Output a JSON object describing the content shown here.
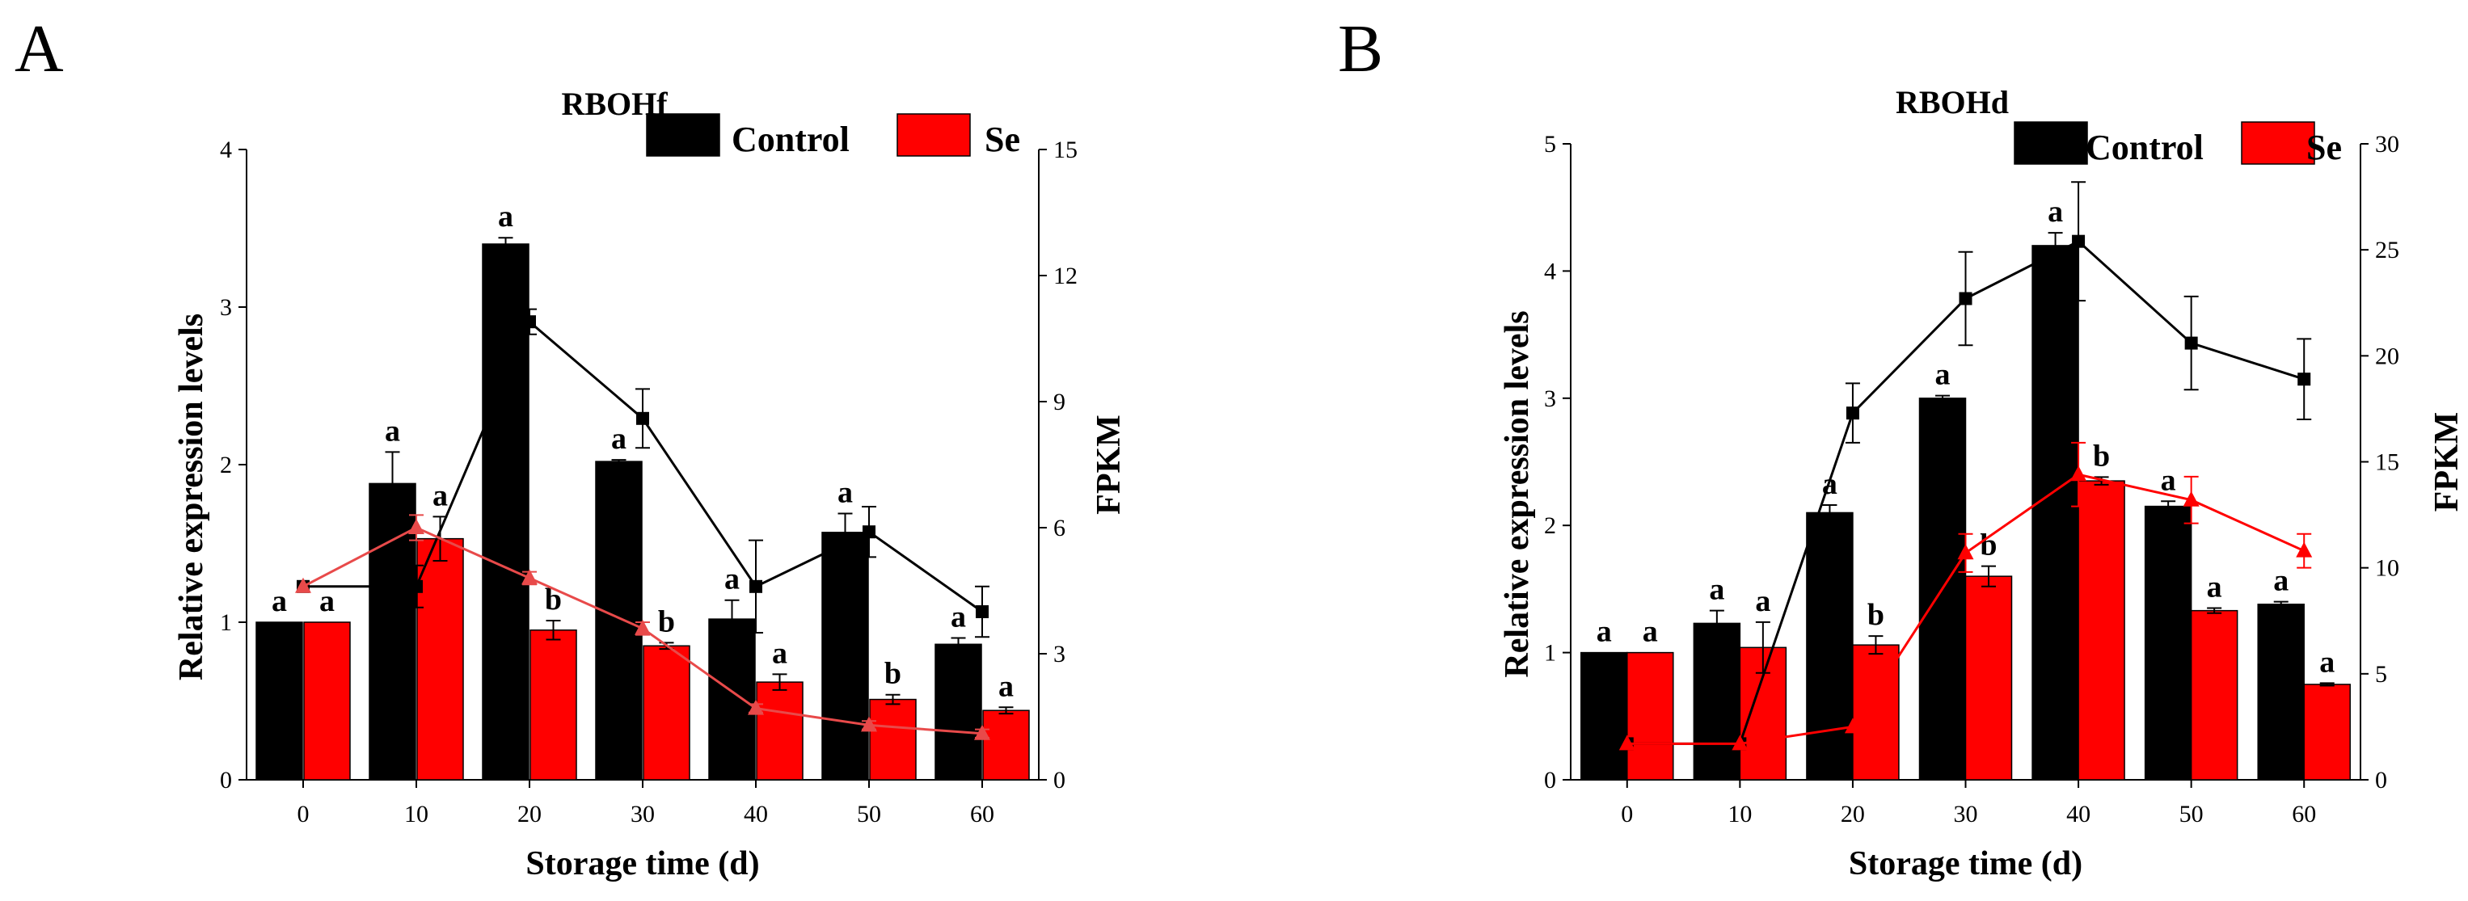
{
  "colors": {
    "control": "#000000",
    "se": "#ff0000",
    "se_line_A": "#e84a4a",
    "axis": "#000000"
  },
  "chart_data": [
    {
      "panel": "A",
      "type": "bar",
      "title": "RBOHf",
      "xlabel": "Storage time (d)",
      "ylabel": "Relative expression levels",
      "y2label": "FPKM",
      "categories": [
        "0",
        "10",
        "20",
        "30",
        "40",
        "50",
        "60"
      ],
      "ylim": [
        0,
        4
      ],
      "yticks": [
        0,
        1,
        2,
        3,
        4
      ],
      "y2lim": [
        0,
        15
      ],
      "y2ticks": [
        0,
        3,
        6,
        9,
        12,
        15
      ],
      "legend": [
        "Control",
        "Se"
      ],
      "legend_position": "top-right",
      "bars": [
        {
          "name": "Control",
          "values": [
            1.0,
            1.88,
            3.4,
            2.02,
            1.02,
            1.57,
            0.86
          ],
          "errors": [
            0,
            0.2,
            0.04,
            0.01,
            0.12,
            0.12,
            0.04
          ],
          "labels": [
            "a",
            "a",
            "a",
            "a",
            "a",
            "a",
            "a"
          ]
        },
        {
          "name": "Se",
          "values": [
            1.0,
            1.53,
            0.95,
            0.85,
            0.62,
            0.51,
            0.44
          ],
          "errors": [
            0,
            0.14,
            0.06,
            0.02,
            0.05,
            0.03,
            0.02
          ],
          "labels": [
            "a",
            "a",
            "b",
            "b",
            "a",
            "b",
            "a"
          ]
        }
      ],
      "lines": [
        {
          "name": "Control FPKM",
          "x": [
            "0",
            "10",
            "20",
            "30",
            "40",
            "50",
            "60"
          ],
          "values": [
            4.6,
            4.6,
            10.9,
            8.6,
            4.6,
            5.9,
            4.0
          ],
          "errors": [
            0,
            0.5,
            0.3,
            0.7,
            1.1,
            0.6,
            0.6
          ]
        },
        {
          "name": "Se FPKM",
          "x": [
            "0",
            "10",
            "20",
            "30",
            "40",
            "50",
            "60"
          ],
          "values": [
            4.6,
            6.0,
            4.8,
            3.6,
            1.7,
            1.3,
            1.1
          ],
          "errors": [
            0,
            0.3,
            0.15,
            0.15,
            0.1,
            0.1,
            0.1
          ]
        }
      ]
    },
    {
      "panel": "B",
      "type": "bar",
      "title": "RBOHd",
      "xlabel": "Storage time (d)",
      "ylabel": "Relative expression levels",
      "y2label": "FPKM",
      "categories": [
        "0",
        "10",
        "20",
        "30",
        "40",
        "50",
        "60"
      ],
      "ylim": [
        0,
        5
      ],
      "yticks": [
        0,
        1,
        2,
        3,
        4,
        5
      ],
      "y2lim": [
        0,
        30
      ],
      "y2ticks": [
        0,
        5,
        10,
        15,
        20,
        25,
        30
      ],
      "legend": [
        "Control",
        "Se"
      ],
      "legend_position": "top-right",
      "bars": [
        {
          "name": "Control",
          "values": [
            1.0,
            1.23,
            2.1,
            3.0,
            4.2,
            2.15,
            1.38
          ],
          "errors": [
            0,
            0.1,
            0.06,
            0.02,
            0.1,
            0.04,
            0.02
          ],
          "labels": [
            "a",
            "a",
            "a",
            "a",
            "a",
            "a",
            "a"
          ]
        },
        {
          "name": "Se",
          "values": [
            1.0,
            1.04,
            1.06,
            1.6,
            2.35,
            1.33,
            0.75
          ],
          "errors": [
            0,
            0.2,
            0.07,
            0.08,
            0.03,
            0.02,
            0.01
          ],
          "labels": [
            "a",
            "a",
            "b",
            "b",
            "b",
            "a",
            "a"
          ]
        }
      ],
      "lines": [
        {
          "name": "Control FPKM",
          "x": [
            "0",
            "10",
            "20",
            "30",
            "40",
            "50",
            "60"
          ],
          "values": [
            1.7,
            1.7,
            17.3,
            22.7,
            25.4,
            20.6,
            18.9
          ],
          "errors": [
            0,
            0,
            1.4,
            2.2,
            2.8,
            2.2,
            1.9
          ]
        },
        {
          "name": "Se FPKM",
          "x": [
            "0",
            "10",
            "20",
            "30",
            "40",
            "50",
            "60"
          ],
          "values": [
            1.7,
            1.7,
            2.5,
            10.7,
            14.4,
            13.2,
            10.8
          ],
          "errors": [
            0,
            0,
            0,
            0.9,
            1.5,
            1.1,
            0.8
          ]
        }
      ]
    }
  ],
  "panel_labels": [
    "A",
    "B"
  ]
}
